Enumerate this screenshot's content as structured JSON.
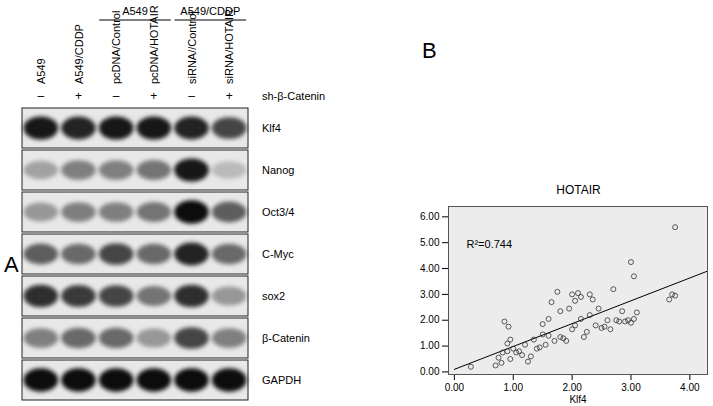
{
  "panel_a": {
    "label": "A",
    "lanes": [
      "A549",
      "A549/CDDP",
      "pcDNA/Control",
      "pcDNA/HOTAIR",
      "siRNA//Control",
      "siRNA/HOTAIR"
    ],
    "groups": [
      {
        "label": "A549",
        "lanes": [
          2,
          3
        ]
      },
      {
        "label": "A549/CDDP",
        "lanes": [
          4,
          5
        ]
      }
    ],
    "treatment": {
      "label": "sh-β-Catenin",
      "signs": [
        "–",
        "+",
        "–",
        "+",
        "–",
        "+"
      ]
    },
    "rows": [
      {
        "name": "Klf4",
        "intensity": [
          0.9,
          0.85,
          0.9,
          0.9,
          0.85,
          0.7
        ]
      },
      {
        "name": "Nanog",
        "intensity": [
          0.3,
          0.45,
          0.45,
          0.5,
          0.9,
          0.2
        ]
      },
      {
        "name": "Oct3/4",
        "intensity": [
          0.35,
          0.45,
          0.45,
          0.5,
          0.95,
          0.6
        ]
      },
      {
        "name": "C-Myc",
        "intensity": [
          0.6,
          0.55,
          0.7,
          0.55,
          0.85,
          0.55
        ]
      },
      {
        "name": "sox2",
        "intensity": [
          0.8,
          0.75,
          0.7,
          0.5,
          0.8,
          0.35
        ]
      },
      {
        "name": "β-Catenin",
        "intensity": [
          0.45,
          0.55,
          0.55,
          0.35,
          0.7,
          0.45
        ]
      },
      {
        "name": "GAPDH",
        "intensity": [
          0.95,
          0.95,
          0.95,
          0.95,
          0.95,
          0.95
        ]
      }
    ]
  },
  "chart_data": {
    "type": "scatter",
    "panel_label": "B",
    "title": "HOTAIR",
    "x_label": "Klf4",
    "annotation": "R²=0.744",
    "color": "#333333",
    "marker": "circle",
    "grid": false,
    "xlim": [
      -0.1,
      4.3
    ],
    "ylim": [
      -0.1,
      6.4
    ],
    "xticks": [
      {
        "value": 0,
        "label": "0.00"
      },
      {
        "value": 1,
        "label": "1.00"
      },
      {
        "value": 2,
        "label": "2.00"
      },
      {
        "value": 3,
        "label": "3.00"
      },
      {
        "value": 4,
        "label": "4.00"
      }
    ],
    "yticks": [
      {
        "value": 0,
        "label": "0.00"
      },
      {
        "value": 1,
        "label": "1.00"
      },
      {
        "value": 2,
        "label": "2.00"
      },
      {
        "value": 3,
        "label": "3.00"
      },
      {
        "value": 4,
        "label": "4.00"
      },
      {
        "value": 5,
        "label": "5.00"
      },
      {
        "value": 6,
        "label": "6.00"
      }
    ],
    "x": [
      0.28,
      0.7,
      0.75,
      0.8,
      0.82,
      0.85,
      0.9,
      0.9,
      0.92,
      0.95,
      0.95,
      1.0,
      1.05,
      1.1,
      1.15,
      1.2,
      1.25,
      1.3,
      1.35,
      1.4,
      1.45,
      1.5,
      1.5,
      1.55,
      1.6,
      1.6,
      1.65,
      1.7,
      1.75,
      1.8,
      1.8,
      1.85,
      1.9,
      1.95,
      2.0,
      2.0,
      2.05,
      2.05,
      2.1,
      2.15,
      2.15,
      2.2,
      2.25,
      2.3,
      2.3,
      2.35,
      2.4,
      2.45,
      2.5,
      2.55,
      2.6,
      2.65,
      2.7,
      2.75,
      2.8,
      2.85,
      2.9,
      2.95,
      3.0,
      3.0,
      3.05,
      3.05,
      3.1,
      3.65,
      3.7,
      3.75,
      3.75
    ],
    "values": [
      0.2,
      0.25,
      0.55,
      0.35,
      0.75,
      1.95,
      0.8,
      1.1,
      1.75,
      0.5,
      1.25,
      0.9,
      0.75,
      0.8,
      0.65,
      1.05,
      0.4,
      0.6,
      1.25,
      0.9,
      0.95,
      1.85,
      1.45,
      1.05,
      1.4,
      2.05,
      2.7,
      1.2,
      3.1,
      1.35,
      2.35,
      1.3,
      1.2,
      2.45,
      3.0,
      1.65,
      1.8,
      2.75,
      3.05,
      2.05,
      2.9,
      1.35,
      1.55,
      2.2,
      3.0,
      2.8,
      1.8,
      2.45,
      1.7,
      1.75,
      2.0,
      1.65,
      3.2,
      2.0,
      1.95,
      2.35,
      1.95,
      2.0,
      4.25,
      1.9,
      3.7,
      2.05,
      2.3,
      2.8,
      3.0,
      2.95,
      5.6
    ],
    "trend_line": {
      "x": [
        0,
        4.3
      ],
      "y": [
        0.1,
        3.9
      ]
    }
  }
}
